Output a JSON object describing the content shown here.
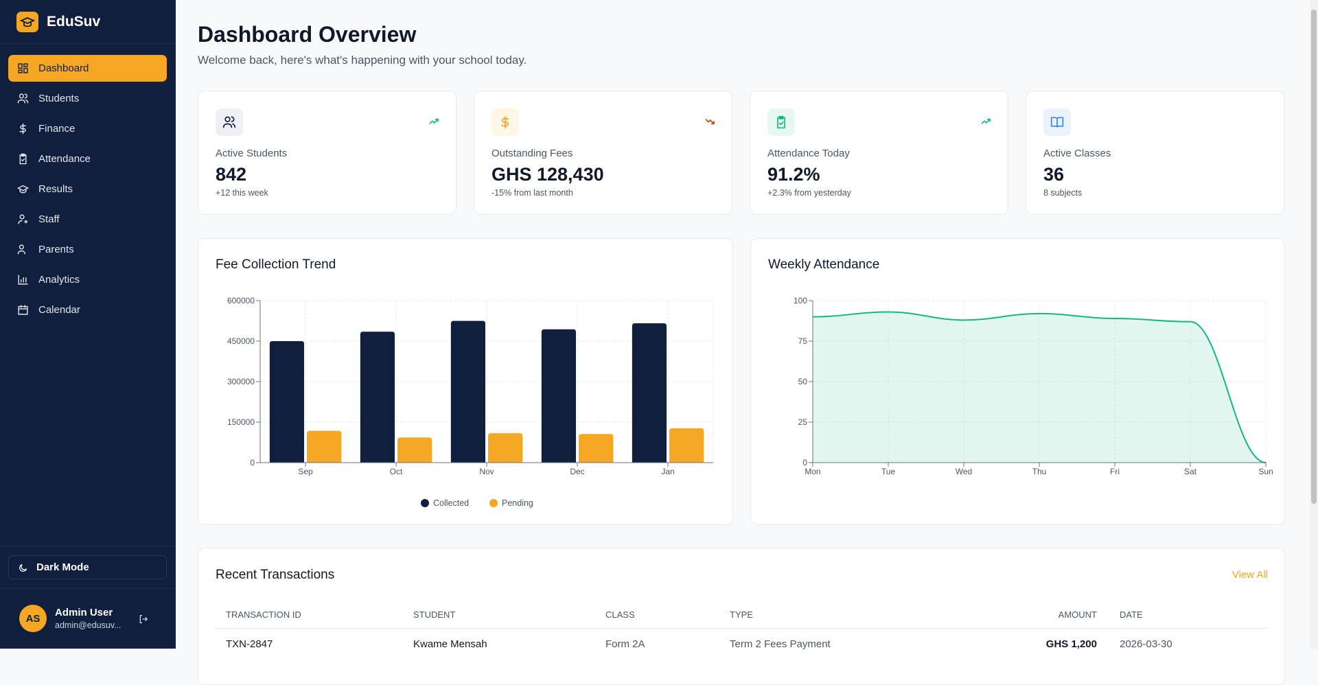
{
  "sidebar": {
    "brand": "EduSuv",
    "nav": [
      "Dashboard",
      "Students",
      "Finance",
      "Attendance",
      "Results",
      "Staff",
      "Parents",
      "Analytics",
      "Calendar"
    ],
    "dark_mode": "Dark Mode",
    "user": {
      "initials": "AS",
      "name": "Admin User",
      "email": "admin@edusuv..."
    }
  },
  "header": {
    "title": "Dashboard Overview",
    "subtitle": "Welcome back, here's what's happening with your school today."
  },
  "stats": [
    {
      "label": "Active Students",
      "value": "842",
      "note": "+12 this week"
    },
    {
      "label": "Outstanding Fees",
      "value": "GHS 128,430",
      "note": "-15% from last month"
    },
    {
      "label": "Attendance Today",
      "value": "91.2%",
      "note": "+2.3% from yesterday"
    },
    {
      "label": "Active Classes",
      "value": "36",
      "note": "8 subjects"
    }
  ],
  "chart_data": [
    {
      "type": "bar",
      "title": "Fee Collection Trend",
      "categories": [
        "Sep",
        "Oct",
        "Nov",
        "Dec",
        "Jan"
      ],
      "series": [
        {
          "name": "Collected",
          "color": "#0f1f3d",
          "values": [
            450000,
            485000,
            525000,
            494000,
            516000
          ]
        },
        {
          "name": "Pending",
          "color": "#f5a623",
          "values": [
            118000,
            93000,
            109000,
            106000,
            127000
          ]
        }
      ],
      "ylim": [
        0,
        600000
      ],
      "yticks": [
        0,
        150000,
        300000,
        450000,
        600000
      ],
      "grid": true,
      "legend": "bottom"
    },
    {
      "type": "area",
      "title": "Weekly Attendance",
      "categories": [
        "Mon",
        "Tue",
        "Wed",
        "Thu",
        "Fri",
        "Sat",
        "Sun"
      ],
      "values": [
        90,
        93,
        88,
        92,
        89,
        87,
        0
      ],
      "color": "#10b981",
      "ylim": [
        0,
        100
      ],
      "yticks": [
        0,
        25,
        50,
        75,
        100
      ],
      "grid": true
    }
  ],
  "transactions": {
    "title": "Recent Transactions",
    "link": "View All",
    "columns": [
      "TRANSACTION ID",
      "STUDENT",
      "CLASS",
      "TYPE",
      "AMOUNT",
      "DATE"
    ],
    "rows": [
      [
        "TXN-2847",
        "Kwame Mensah",
        "Form 2A",
        "Term 2 Fees Payment",
        "GHS 1,200",
        "2026-03-30"
      ]
    ]
  }
}
